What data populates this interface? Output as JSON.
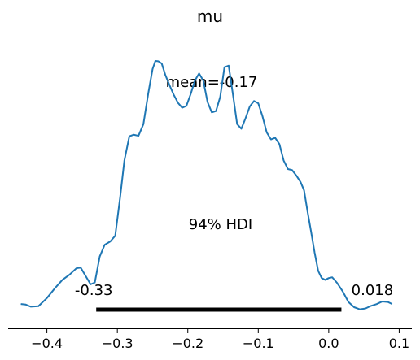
{
  "chart_data": {
    "type": "line",
    "title": "mu",
    "xlabel": "",
    "ylabel": "",
    "xlim": [
      -0.455,
      0.118
    ],
    "ylim": [
      0,
      1.02
    ],
    "grid": false,
    "x_ticks": [
      -0.4,
      -0.3,
      -0.2,
      -0.1,
      0.0,
      0.1
    ],
    "x_tick_labels": [
      "−0.4",
      "−0.3",
      "−0.2",
      "−0.1",
      "0.0",
      "0.1"
    ],
    "series": [
      {
        "color": "#1f77b4",
        "x": [
          -0.437,
          -0.43,
          -0.423,
          -0.412,
          -0.4,
          -0.388,
          -0.378,
          -0.368,
          -0.358,
          -0.352,
          -0.345,
          -0.338,
          -0.332,
          -0.325,
          -0.318,
          -0.31,
          -0.303,
          -0.296,
          -0.29,
          -0.283,
          -0.277,
          -0.27,
          -0.263,
          -0.256,
          -0.25,
          -0.246,
          -0.242,
          -0.237,
          -0.232,
          -0.226,
          -0.22,
          -0.214,
          -0.208,
          -0.202,
          -0.196,
          -0.19,
          -0.184,
          -0.178,
          -0.172,
          -0.166,
          -0.16,
          -0.154,
          -0.148,
          -0.142,
          -0.136,
          -0.13,
          -0.124,
          -0.118,
          -0.112,
          -0.106,
          -0.1,
          -0.094,
          -0.088,
          -0.082,
          -0.076,
          -0.07,
          -0.064,
          -0.058,
          -0.052,
          -0.046,
          -0.04,
          -0.035,
          -0.03,
          -0.025,
          -0.02,
          -0.015,
          -0.01,
          -0.005,
          0.0,
          0.005,
          0.012,
          0.02,
          0.028,
          0.036,
          0.044,
          0.052,
          0.06,
          0.068,
          0.076,
          0.084,
          0.09
        ],
        "y": [
          0.012,
          0.01,
          0.002,
          0.004,
          0.035,
          0.075,
          0.105,
          0.125,
          0.15,
          0.152,
          0.12,
          0.088,
          0.095,
          0.195,
          0.24,
          0.253,
          0.275,
          0.424,
          0.565,
          0.658,
          0.664,
          0.66,
          0.705,
          0.825,
          0.917,
          0.948,
          0.947,
          0.938,
          0.895,
          0.855,
          0.818,
          0.787,
          0.768,
          0.775,
          0.82,
          0.872,
          0.9,
          0.872,
          0.79,
          0.75,
          0.755,
          0.81,
          0.924,
          0.93,
          0.82,
          0.705,
          0.687,
          0.728,
          0.773,
          0.794,
          0.785,
          0.735,
          0.673,
          0.646,
          0.652,
          0.628,
          0.565,
          0.532,
          0.528,
          0.507,
          0.482,
          0.45,
          0.367,
          0.29,
          0.21,
          0.14,
          0.112,
          0.105,
          0.112,
          0.115,
          0.093,
          0.06,
          0.02,
          0.0,
          -0.008,
          -0.005,
          0.005,
          0.012,
          0.022,
          0.02,
          0.012
        ]
      }
    ],
    "hdi": {
      "label": "94% HDI",
      "lower": -0.33,
      "upper": 0.018,
      "lower_label": "-0.33",
      "upper_label": "0.018"
    },
    "point_estimate_label": "mean=-0.17"
  }
}
